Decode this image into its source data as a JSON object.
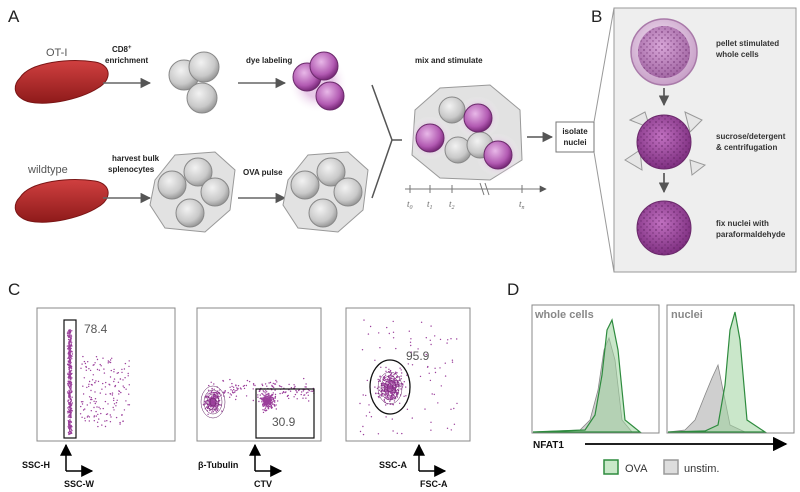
{
  "panel_letters": {
    "a": "A",
    "b": "B",
    "c": "C",
    "d": "D"
  },
  "panel_a": {
    "row1_label": "OT-I",
    "row2_label": "wildtype",
    "step_cd8_main": "CD8",
    "step_cd8_sup": "+",
    "step_cd8_line2": "enrichment",
    "step_dye": "dye labeling",
    "step_harvest_line1": "harvest bulk",
    "step_harvest_line2": "splenocytes",
    "step_ova": "OVA pulse",
    "step_mix": "mix and stimulate",
    "time_labels": [
      {
        "t": "t",
        "sub": "0"
      },
      {
        "t": "t",
        "sub": "1"
      },
      {
        "t": "t",
        "sub": "2"
      },
      {
        "t": "t",
        "sub": "n"
      }
    ],
    "isolate_line1": "isolate",
    "isolate_line2": "nuclei"
  },
  "panel_b": {
    "step1_line1": "pellet stimulated",
    "step1_line2": "whole cells",
    "step2_line1": "sucrose/detergent",
    "step2_line2": "& centrifugation",
    "step3_line1": "fix nuclei with",
    "step3_line2": "paraformaldehyde"
  },
  "panel_c": {
    "plot1": {
      "gate_value": "78.4",
      "y_axis": "SSC-H",
      "x_axis": "SSC-W"
    },
    "plot2": {
      "gate_value": "30.9",
      "y_axis": "β-Tubulin",
      "x_axis": "CTV"
    },
    "plot3": {
      "gate_value": "95.9",
      "y_axis": "SSC-A",
      "x_axis": "FSC-A"
    }
  },
  "panel_d": {
    "plot1_title": "whole cells",
    "plot2_title": "nuclei",
    "x_axis": "NFAT1",
    "legend": [
      {
        "label": "OVA",
        "color": "#2e8b3e"
      },
      {
        "label": "unstim.",
        "color": "#9a9a9a"
      }
    ]
  },
  "colors": {
    "purple": "#9b3f9b",
    "cell_gray": "#c8c8c8",
    "organ_red": "#b02424",
    "ova_green": "#2e8b3e",
    "panel_b_bg": "#eeeeee"
  }
}
